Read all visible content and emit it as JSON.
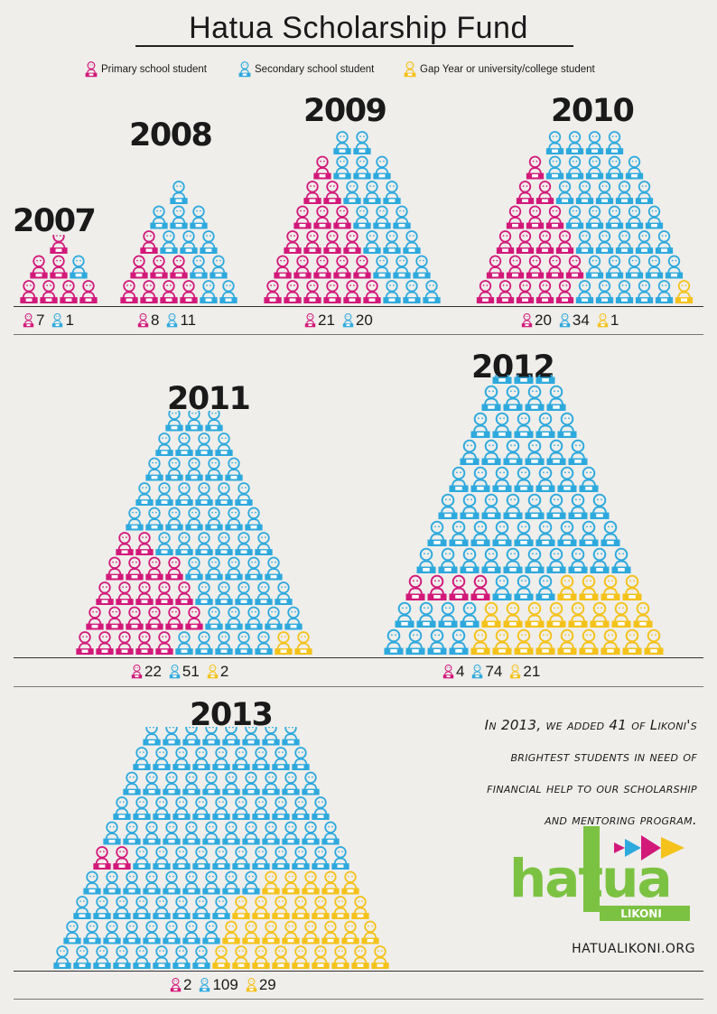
{
  "title": "Hatua Scholarship Fund",
  "legend": [
    {
      "label": "Primary school student",
      "color": "#d2197a"
    },
    {
      "label": "Secondary school student",
      "color": "#2ea9dd"
    },
    {
      "label": "Gap Year or university/college student",
      "color": "#f4c21b"
    }
  ],
  "years": [
    {
      "year": "2007",
      "primary": 7,
      "secondary": 1,
      "higher": 0,
      "counts": [
        "7",
        "1"
      ]
    },
    {
      "year": "2008",
      "primary": 8,
      "secondary": 11,
      "higher": 0,
      "counts": [
        "8",
        "11"
      ]
    },
    {
      "year": "2009",
      "primary": 21,
      "secondary": 20,
      "higher": 0,
      "counts": [
        "21",
        "20"
      ]
    },
    {
      "year": "2010",
      "primary": 20,
      "secondary": 34,
      "higher": 1,
      "counts": [
        "20",
        "34",
        "1"
      ]
    },
    {
      "year": "2011",
      "primary": 22,
      "secondary": 51,
      "higher": 2,
      "counts": [
        "22",
        "51",
        "2"
      ]
    },
    {
      "year": "2012",
      "primary": 4,
      "secondary": 74,
      "higher": 21,
      "counts": [
        "4",
        "74",
        "21"
      ]
    },
    {
      "year": "2013",
      "primary": 2,
      "secondary": 109,
      "higher": 29,
      "counts": [
        "2",
        "109",
        "29"
      ]
    }
  ],
  "note_lines": [
    "In 2013, we added 41 of Likoni's",
    "brightest students in need of",
    "financial help to our scholarship",
    "and mentoring program."
  ],
  "logo": {
    "word": "hatua",
    "sub": "LIKONI",
    "color": "#7cc242"
  },
  "site": "HATUALIKONI.ORG"
}
